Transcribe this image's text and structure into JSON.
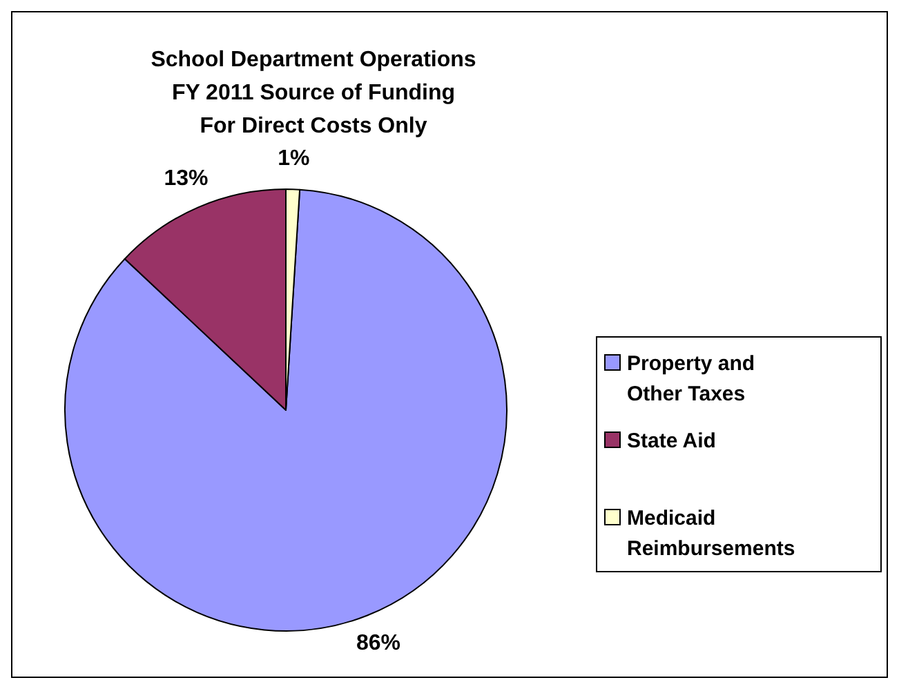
{
  "chart_data": {
    "type": "pie",
    "title": "School Department Operations\nFY 2011 Source of Funding\nFor Direct Costs Only",
    "categories": [
      "Property and Other Taxes",
      "State Aid",
      "Medicaid Reimbursements"
    ],
    "values": [
      86,
      13,
      1
    ],
    "colors": [
      "#9999ff",
      "#993366",
      "#ffffcc"
    ],
    "value_labels": [
      "86%",
      "13%",
      "1%"
    ],
    "legend": "right"
  }
}
